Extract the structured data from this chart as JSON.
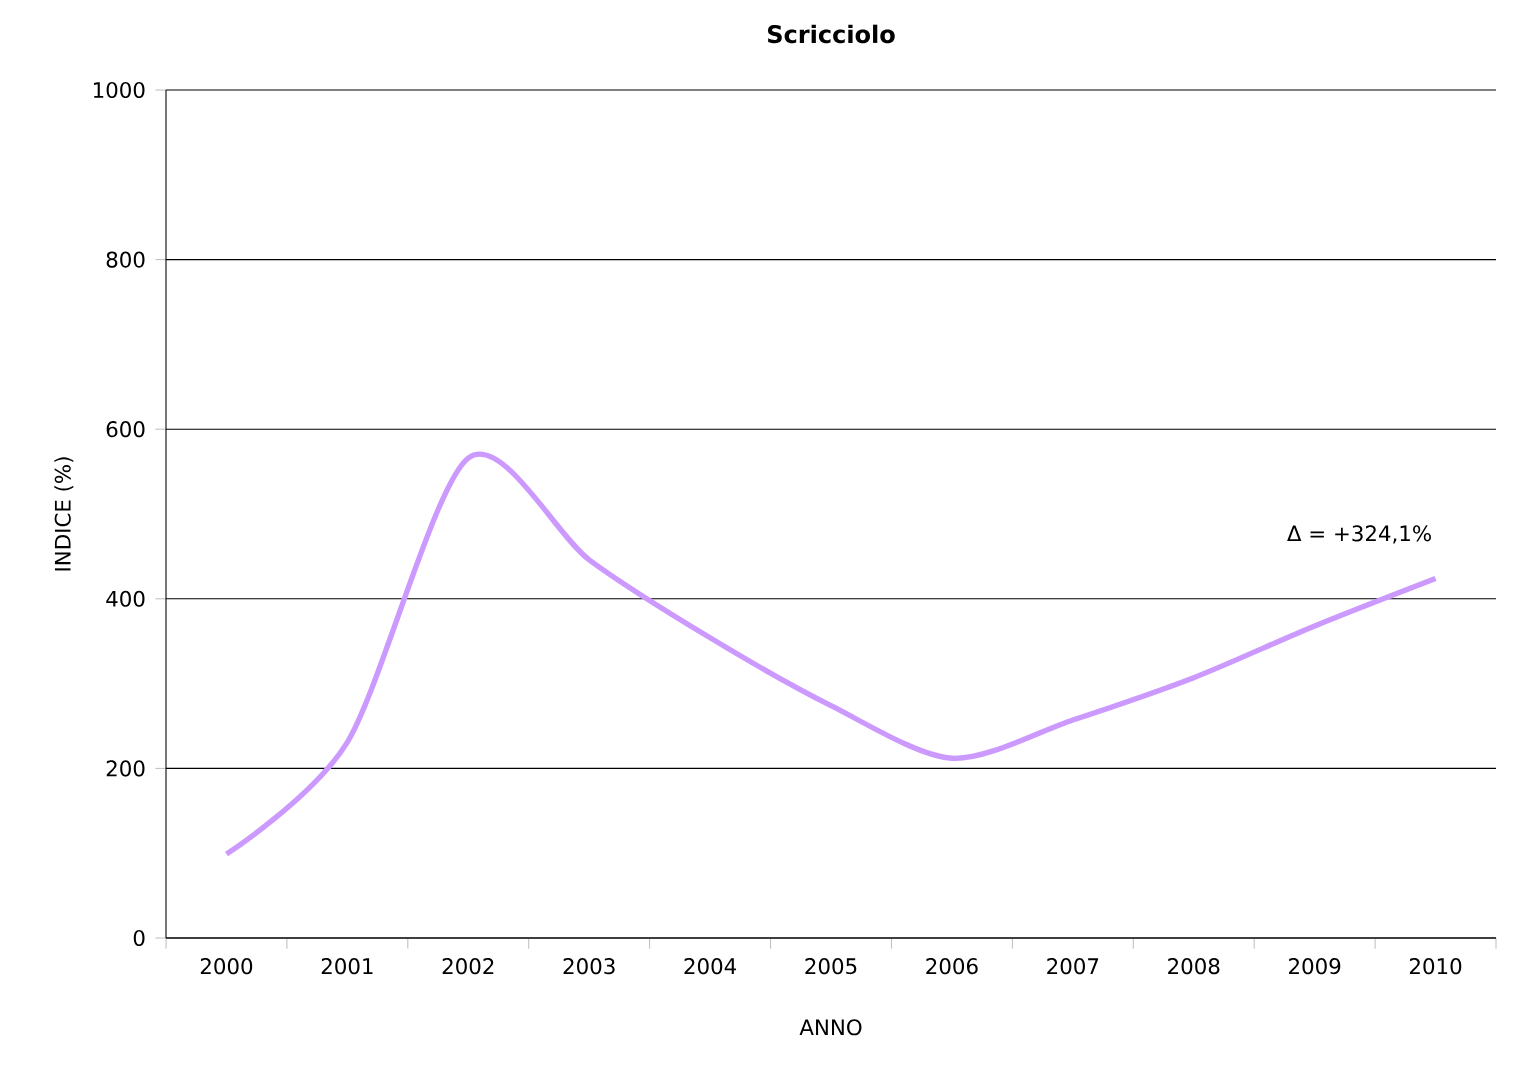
{
  "chart_data": {
    "type": "line",
    "title": "Scricciolo",
    "xlabel": "ANNO",
    "ylabel": "INDICE (%)",
    "categories": [
      "2000",
      "2001",
      "2002",
      "2003",
      "2004",
      "2005",
      "2006",
      "2007",
      "2008",
      "2009",
      "2010"
    ],
    "series": [
      {
        "color": "#cc99ff",
        "values": [
          99,
          231,
          566,
          446,
          354,
          274,
          212,
          257,
          307,
          368,
          424
        ]
      }
    ],
    "ylim": [
      0,
      1000
    ],
    "yticks": [
      0,
      200,
      400,
      600,
      800,
      1000
    ],
    "grid": "y",
    "marker": "none",
    "line_style": "solid",
    "annotations": [
      "Δ = +324,1%"
    ]
  }
}
